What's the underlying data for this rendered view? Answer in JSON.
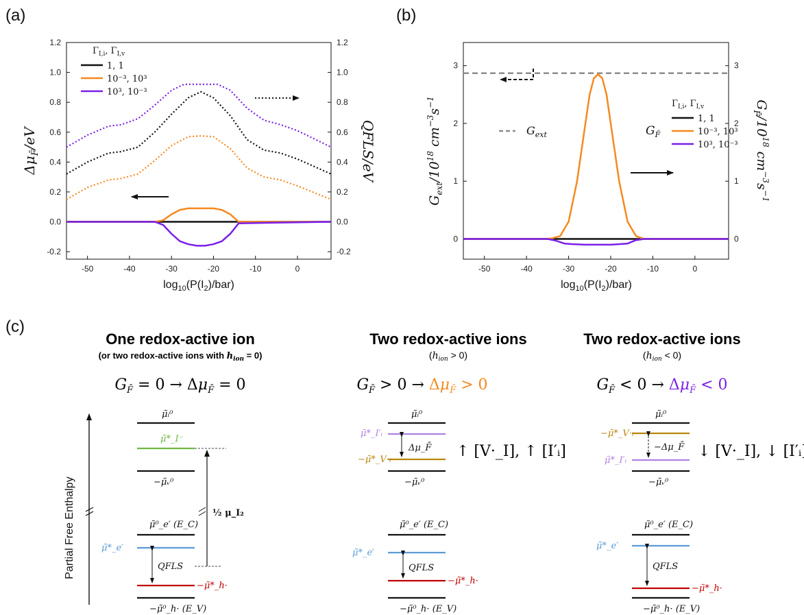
{
  "panel_labels": [
    "(a)",
    "(b)",
    "(c)"
  ],
  "colors": {
    "black": "#111111",
    "orange": "#f5891f",
    "purple": "#7a1fe8",
    "gray_dash": "#8c8c8c",
    "green": "#6fb642",
    "blue": "#5b9bd5",
    "red": "#c00000",
    "gold": "#b8860b",
    "lilac": "#b080e0"
  },
  "chart_data": [
    {
      "id": "a",
      "type": "line",
      "xlabel": "log10(P(I2)/bar)",
      "ylabel_left": "Δμ_F̄ / eV",
      "ylabel_right": "QFLS / eV",
      "xlim": [
        -55,
        8
      ],
      "ylim": [
        -0.25,
        1.2
      ],
      "xticks": [
        -50,
        -40,
        -30,
        -20,
        -10,
        0
      ],
      "yticks": [
        -0.2,
        0.0,
        0.2,
        0.4,
        0.6,
        0.8,
        1.0,
        1.2
      ],
      "legend_title": "Γ_I,i , Γ_I,v",
      "legend_entries": [
        "1, 1",
        "10⁻³, 10³",
        "10³, 10⁻³"
      ],
      "legend_position": "top-left",
      "grid": false,
      "series": [
        {
          "name": "1, 1",
          "style": "solid",
          "axis": "left",
          "x": [
            -55,
            8
          ],
          "y": [
            0,
            0
          ]
        },
        {
          "name": "10⁻³, 10³",
          "style": "solid",
          "axis": "left",
          "x": [
            -55,
            -34,
            -32,
            -30,
            -28,
            -26,
            -24,
            -22,
            -20,
            -18,
            -16,
            -14,
            8
          ],
          "y": [
            0,
            0,
            0.01,
            0.05,
            0.08,
            0.09,
            0.09,
            0.09,
            0.09,
            0.08,
            0.05,
            0.0,
            0
          ]
        },
        {
          "name": "10³, 10⁻³",
          "style": "solid",
          "axis": "left",
          "x": [
            -55,
            -34,
            -32,
            -30,
            -28,
            -26,
            -24,
            -22,
            -20,
            -18,
            -16,
            -14,
            8
          ],
          "y": [
            0,
            0,
            -0.02,
            -0.08,
            -0.13,
            -0.15,
            -0.16,
            -0.16,
            -0.15,
            -0.13,
            -0.08,
            -0.01,
            0
          ]
        },
        {
          "name": "1, 1",
          "style": "dotted",
          "axis": "right",
          "x": [
            -55,
            -50,
            -45,
            -42,
            -38,
            -34,
            -30,
            -26,
            -23,
            -20,
            -16,
            -12,
            -8,
            -4,
            0,
            8
          ],
          "y": [
            0.32,
            0.4,
            0.46,
            0.47,
            0.5,
            0.6,
            0.72,
            0.83,
            0.87,
            0.83,
            0.71,
            0.55,
            0.48,
            0.46,
            0.42,
            0.32
          ]
        },
        {
          "name": "10⁻³, 10³",
          "style": "dotted",
          "axis": "right",
          "x": [
            -55,
            -50,
            -45,
            -42,
            -38,
            -34,
            -30,
            -26,
            -23,
            -20,
            -16,
            -12,
            -8,
            -4,
            0,
            8
          ],
          "y": [
            0.15,
            0.23,
            0.28,
            0.29,
            0.32,
            0.41,
            0.51,
            0.57,
            0.575,
            0.57,
            0.49,
            0.36,
            0.3,
            0.28,
            0.24,
            0.15
          ]
        },
        {
          "name": "10³, 10⁻³",
          "style": "dotted",
          "axis": "right",
          "x": [
            -55,
            -50,
            -45,
            -42,
            -38,
            -34,
            -30,
            -27,
            -23,
            -19,
            -16,
            -12,
            -8,
            -4,
            0,
            8
          ],
          "y": [
            0.5,
            0.58,
            0.64,
            0.65,
            0.69,
            0.78,
            0.88,
            0.92,
            0.92,
            0.92,
            0.88,
            0.76,
            0.68,
            0.65,
            0.61,
            0.5
          ]
        }
      ]
    },
    {
      "id": "b",
      "type": "line",
      "xlabel": "log10(P(I2)/bar)",
      "ylabel_left": "G_ext / 10¹⁸ cm⁻³s⁻¹",
      "ylabel_right": "G_F̄ / 10¹⁸ cm⁻³s⁻¹",
      "xlim": [
        -55,
        8
      ],
      "ylim": [
        -0.35,
        3.4
      ],
      "xticks": [
        -50,
        -40,
        -30,
        -20,
        -10,
        0
      ],
      "yticks": [
        0,
        1,
        2,
        3
      ],
      "legend_title": "Γ_I,i , Γ_I,v",
      "legend_entries": [
        "1, 1",
        "10⁻³, 10³",
        "10³, 10⁻³"
      ],
      "legend_symbol": "G_F̄",
      "gext_label": "G_ext",
      "grid": false,
      "series": [
        {
          "name": "G_ext",
          "style": "dashed",
          "axis": "left",
          "x": [
            -55,
            8
          ],
          "y": [
            2.87,
            2.87
          ]
        },
        {
          "name": "1, 1",
          "style": "solid",
          "axis": "right",
          "x": [
            -55,
            8
          ],
          "y": [
            0,
            0
          ]
        },
        {
          "name": "10⁻³, 10³",
          "style": "solid",
          "axis": "right",
          "x": [
            -55,
            -36,
            -34,
            -32,
            -30,
            -28,
            -26,
            -25,
            -24,
            -23,
            -22,
            -21,
            -20,
            -18,
            -16,
            -14,
            -12,
            8
          ],
          "y": [
            0,
            0,
            0.01,
            0.05,
            0.3,
            1.0,
            2.0,
            2.5,
            2.78,
            2.85,
            2.78,
            2.5,
            2.0,
            1.0,
            0.3,
            0.05,
            0,
            0
          ]
        },
        {
          "name": "10³, 10⁻³",
          "style": "solid",
          "axis": "right",
          "x": [
            -55,
            -35,
            -33,
            -31,
            -29,
            -26,
            -23,
            -20,
            -18,
            -16,
            -14,
            -12,
            8
          ],
          "y": [
            0,
            0,
            -0.03,
            -0.08,
            -0.09,
            -0.1,
            -0.1,
            -0.1,
            -0.09,
            -0.08,
            -0.02,
            0,
            0
          ]
        }
      ]
    }
  ],
  "panel_c": {
    "ylabel": "Partial Free Enthalpy",
    "columns": [
      {
        "title": "One redox-active ion",
        "subtitle": "(or two redox-active ions with h_ion = 0)",
        "equation": "G_F̄ = 0  → Δμ_F̄ = 0",
        "levels": {
          "top": "μ̃ᵢ⁰",
          "mid": "μ̃*_I⁻",
          "low": "−μ̃ᵥ⁰",
          "ec": "μ̃⁰_e′ (E_C)",
          "qfls_top": "μ̃*_e′",
          "qfls_label": "QFLS",
          "qfls_bot": "−μ̃*_h·",
          "ev": "−μ̃⁰_h· (E_V)",
          "half_mu": "½ μ_I₂"
        }
      },
      {
        "title": "Two redox-active ions",
        "subtitle": "(h_ion > 0)",
        "equation": "G_F̄ > 0  → Δμ_F̄ > 0",
        "levels": {
          "top": "μ̃ᵢ⁰",
          "mid_a": "μ̃*_I′ᵢ",
          "delta": "Δμ_F̄",
          "mid_b": "−μ̃*_V·ᵢ",
          "low": "−μ̃ᵥ⁰",
          "ec": "μ̃⁰_e′ (E_C)",
          "qfls_top": "μ̃*_e′",
          "qfls_label": "QFLS",
          "qfls_bot": "−μ̃*_h·",
          "ev": "−μ̃⁰_h· (E_V)"
        },
        "annotation": "↑ [V·_I], ↑ [I′ᵢ]"
      },
      {
        "title": "Two redox-active ions",
        "subtitle": "(h_ion < 0)",
        "equation": "G_F̄ < 0  → Δμ_F̄ < 0",
        "levels": {
          "top": "μ̃ᵢ⁰",
          "mid_a": "−μ̃*_V·ᵢ",
          "delta": "−Δμ_F̄",
          "mid_b": "μ̃*_I′ᵢ",
          "low": "−μ̃ᵥ⁰",
          "ec": "μ̃⁰_e′ (E_C)",
          "qfls_top": "μ̃*_e′",
          "qfls_label": "QFLS",
          "qfls_bot": "−μ̃*_h·",
          "ev": "−μ̃⁰_h· (E_V)"
        },
        "annotation": "↓ [V·_I], ↓ [I′ᵢ]"
      }
    ]
  }
}
